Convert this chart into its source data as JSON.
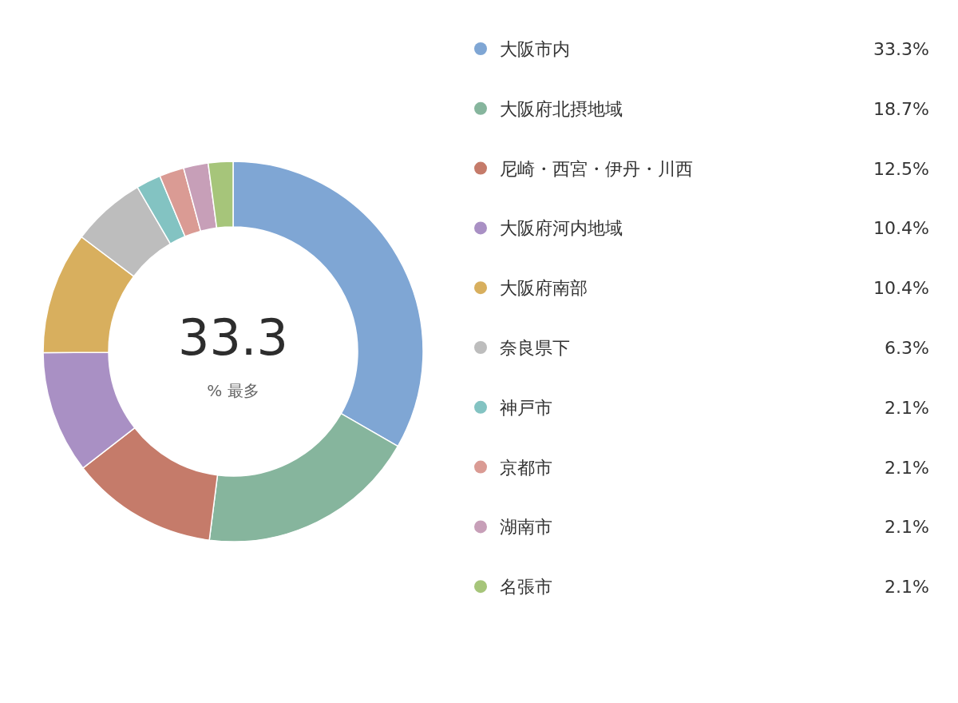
{
  "chart_data": {
    "type": "donut",
    "categories": [
      "大阪市内",
      "大阪府北摂地域",
      "尼崎・西宮・伊丹・川西",
      "大阪府河内地域",
      "大阪府南部",
      "奈良県下",
      "神戸市",
      "京都市",
      "湖南市",
      "名張市"
    ],
    "values": [
      33.3,
      18.7,
      12.5,
      10.4,
      10.4,
      6.3,
      2.1,
      2.1,
      2.1,
      2.1
    ],
    "value_labels": [
      "33.3%",
      "18.7%",
      "12.5%",
      "10.4%",
      "10.4%",
      "6.3%",
      "2.1%",
      "2.1%",
      "2.1%",
      "2.1%"
    ],
    "colors": [
      "#7fa6d4",
      "#86b59d",
      "#c57b6a",
      "#a990c4",
      "#d8af5e",
      "#bdbdbd",
      "#83c3c2",
      "#da9b94",
      "#c79fb8",
      "#a6c57a"
    ],
    "annotations": [
      "33.3",
      "% 最多"
    ],
    "legend": "right"
  }
}
